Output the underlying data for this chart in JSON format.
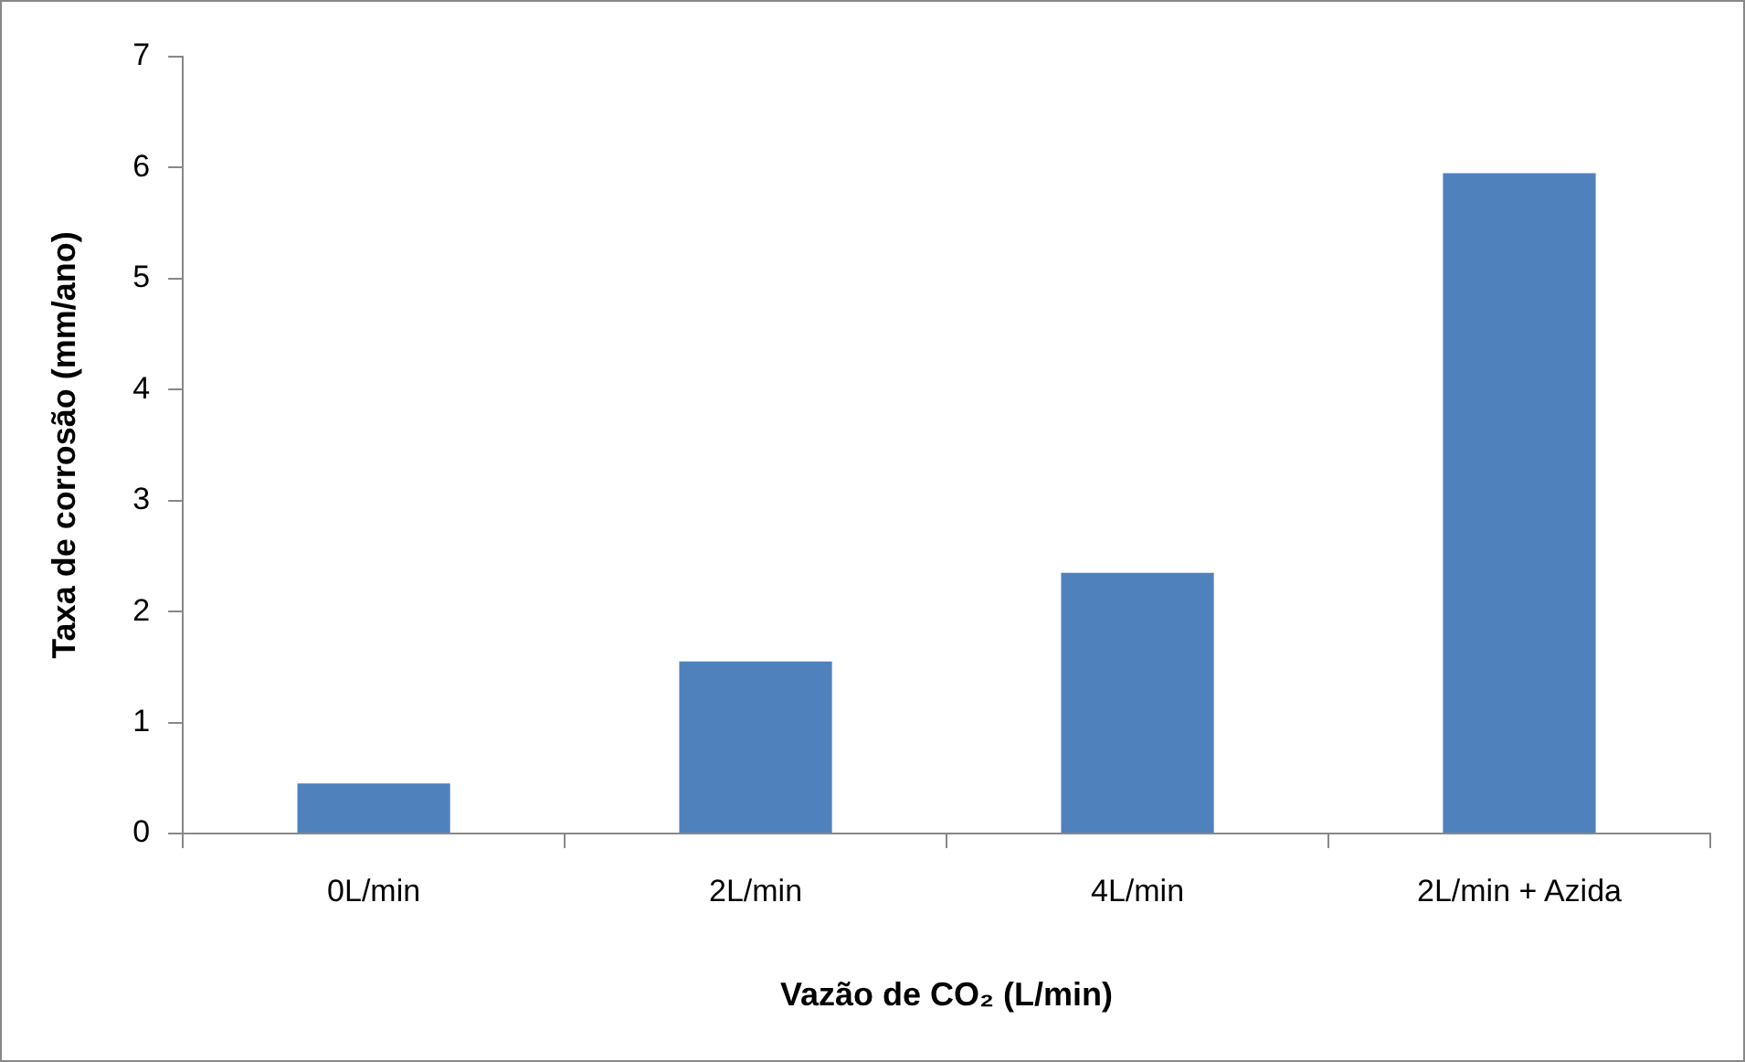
{
  "chart_data": {
    "type": "bar",
    "xlabel": "Vazão de CO₂ (L/min)",
    "ylabel": "Taxa de corrosão (mm/ano)",
    "categories": [
      "0L/min",
      "2L/min",
      "4L/min",
      "2L/min + Azida"
    ],
    "values": [
      0.45,
      1.55,
      2.35,
      5.95
    ],
    "color": "#4f81bd",
    "ylim": [
      0,
      7
    ],
    "yticks": [
      0,
      1,
      2,
      3,
      4,
      5,
      6,
      7
    ],
    "grid": false,
    "legend": false
  }
}
